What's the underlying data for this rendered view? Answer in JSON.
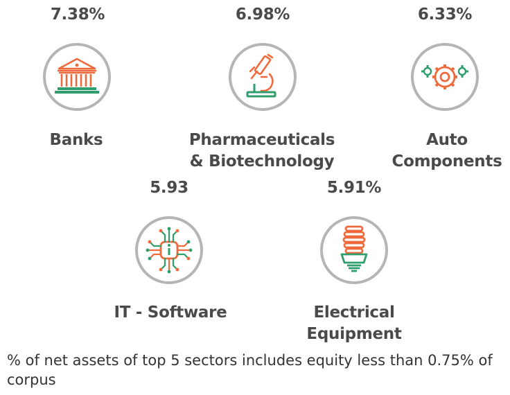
{
  "sectors": [
    {
      "percent": "7.38%",
      "name": "Banks",
      "icon": "bank-icon"
    },
    {
      "percent": "6.98%",
      "name_line1": "Pharmaceuticals",
      "name_line2": "& Biotechnology",
      "icon": "microscope-icon"
    },
    {
      "percent": "6.33%",
      "name_line1": "Auto",
      "name_line2": "Components",
      "icon": "gears-icon"
    },
    {
      "percent": "5.93",
      "name": "IT - Software",
      "icon": "chip-icon"
    },
    {
      "percent": "5.91%",
      "name_line1": "Electrical",
      "name_line2": "Equipment",
      "icon": "cfl-bulb-icon"
    }
  ],
  "footnote": "% of net assets of top 5 sectors includes equity less than 0.75% of corpus",
  "colors": {
    "accent_orange": "#ee6a3c",
    "accent_green": "#2e9e6b",
    "ring": "#b5b5b5",
    "text": "#4a4a4a"
  }
}
